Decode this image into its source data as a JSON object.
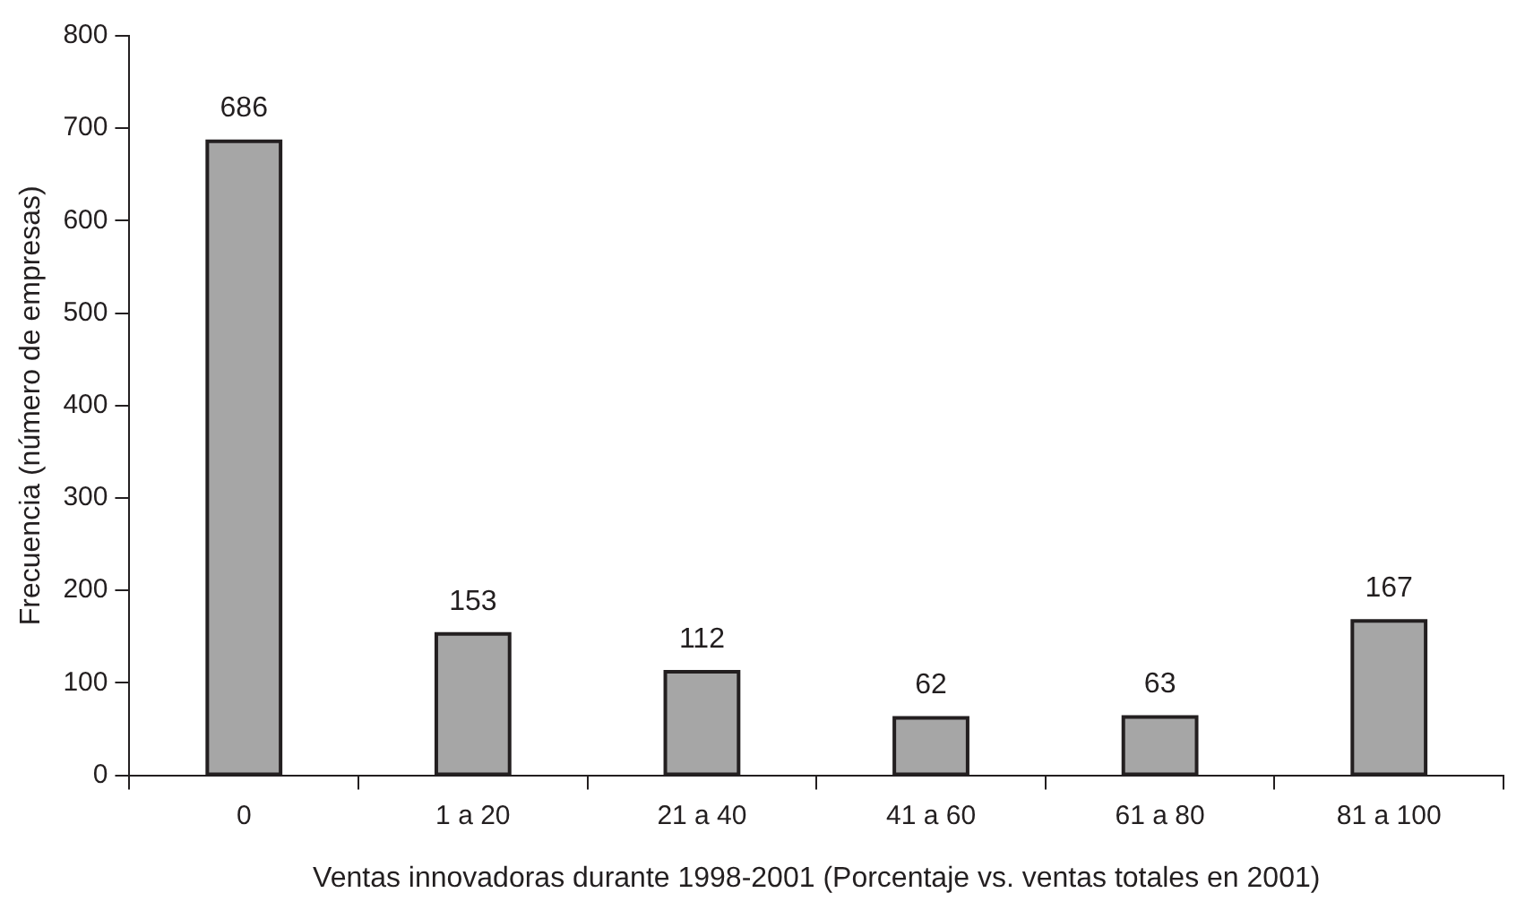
{
  "chart_data": {
    "type": "bar",
    "xlabel": "Ventas innovadoras durante 1998-2001 (Porcentaje vs. ventas totales en 2001)",
    "ylabel": "Frecuencia (número de empresas)",
    "categories": [
      "0",
      "1 a 20",
      "21 a 40",
      "41 a 60",
      "61 a 80",
      "81 a 100"
    ],
    "values": [
      686,
      153,
      112,
      62,
      63,
      167
    ],
    "color": "#a6a6a6",
    "ylim": [
      0,
      800
    ],
    "yticks": [
      0,
      100,
      200,
      300,
      400,
      500,
      600,
      700,
      800
    ],
    "grid": false,
    "data_labels": true,
    "legend": false
  }
}
